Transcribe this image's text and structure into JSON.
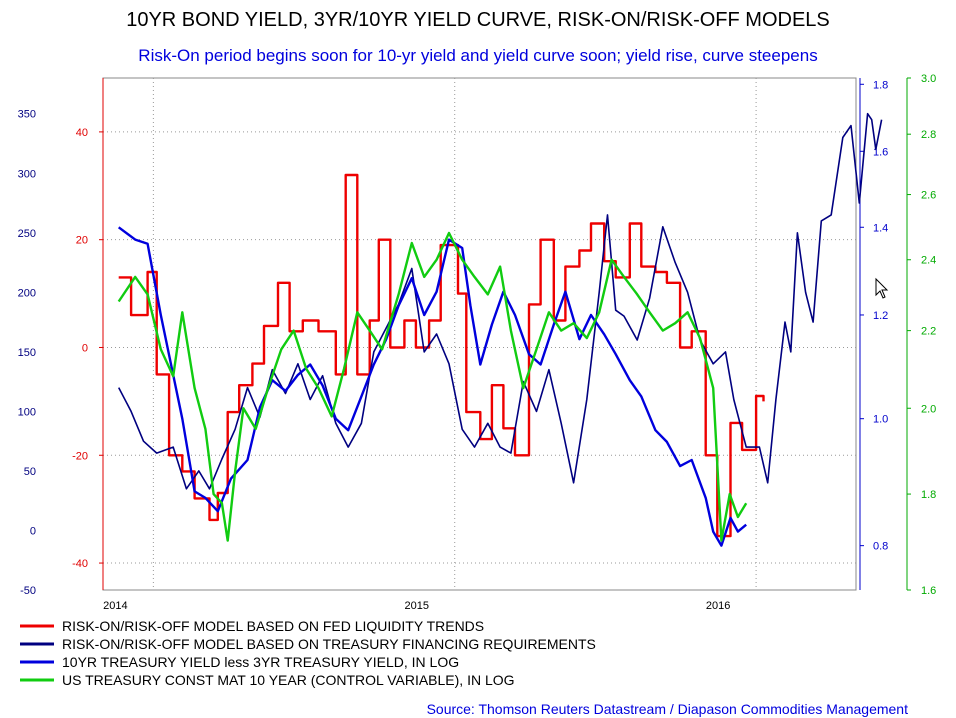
{
  "title": "10YR BOND YIELD, 3YR/10YR YIELD CURVE, RISK-ON/RISK-OFF MODELS",
  "subtitle": "Risk-On period begins soon for 10-yr yield and yield curve soon; yield rise, curve steepens",
  "source": "Source: Thomson Reuters Datastream / Diapason Commodities Management",
  "chart_data": {
    "type": "line",
    "x_range": [
      "2013-11",
      "2016-05"
    ],
    "x_ticks": [
      {
        "label": "2014",
        "date": "2014-01"
      },
      {
        "label": "2015",
        "date": "2015-01"
      },
      {
        "label": "2016",
        "date": "2016-01"
      }
    ],
    "grid": true,
    "legend": "bottom",
    "axes": [
      {
        "id": "far_left",
        "color": "#000080",
        "range": [
          -50,
          380
        ],
        "ticks": [
          "-50",
          "0",
          "50",
          "100",
          "150",
          "200",
          "250",
          "300",
          "350"
        ]
      },
      {
        "id": "left",
        "color": "#e00000",
        "range": [
          -45,
          50
        ],
        "ticks": [
          "-40",
          "-20",
          "0",
          "20",
          "40"
        ]
      },
      {
        "id": "right",
        "color": "#0000cc",
        "scale": "log",
        "range": [
          0.74,
          1.82
        ],
        "ticks": [
          "0.8",
          "1.0",
          "1.2",
          "1.4",
          "1.6",
          "1.8"
        ]
      },
      {
        "id": "far_right",
        "color": "#00aa00",
        "scale": "log",
        "range": [
          1.6,
          3.0
        ],
        "ticks": [
          "1.6",
          "1.8",
          "2.0",
          "2.2",
          "2.4",
          "2.6",
          "2.8",
          "3.0"
        ]
      }
    ],
    "series": [
      {
        "name": "RISK-ON/RISK-OFF MODEL BASED ON FED LIQUIDITY TRENDS",
        "color": "#ee0000",
        "axis": "left",
        "step": true,
        "points": [
          [
            "2013-11-20",
            13
          ],
          [
            "2013-12-05",
            6
          ],
          [
            "2013-12-25",
            14
          ],
          [
            "2014-01-05",
            -5
          ],
          [
            "2014-01-20",
            -20
          ],
          [
            "2014-02-05",
            -23
          ],
          [
            "2014-02-20",
            -28
          ],
          [
            "2014-03-10",
            -32
          ],
          [
            "2014-03-20",
            -27
          ],
          [
            "2014-04-01",
            -12
          ],
          [
            "2014-04-15",
            -7
          ],
          [
            "2014-05-01",
            -3
          ],
          [
            "2014-05-15",
            4
          ],
          [
            "2014-06-01",
            12
          ],
          [
            "2014-06-15",
            3
          ],
          [
            "2014-07-01",
            5
          ],
          [
            "2014-07-20",
            3
          ],
          [
            "2014-08-10",
            -5
          ],
          [
            "2014-08-22",
            32
          ],
          [
            "2014-09-05",
            -5
          ],
          [
            "2014-09-20",
            5
          ],
          [
            "2014-10-01",
            20
          ],
          [
            "2014-10-15",
            0
          ],
          [
            "2014-11-01",
            5
          ],
          [
            "2014-11-15",
            0
          ],
          [
            "2014-12-01",
            5
          ],
          [
            "2014-12-15",
            19
          ],
          [
            "2015-01-05",
            10
          ],
          [
            "2015-01-15",
            -12
          ],
          [
            "2015-02-01",
            -17
          ],
          [
            "2015-02-15",
            -7
          ],
          [
            "2015-03-01",
            -15
          ],
          [
            "2015-03-15",
            -20
          ],
          [
            "2015-04-01",
            8
          ],
          [
            "2015-04-15",
            20
          ],
          [
            "2015-05-01",
            5
          ],
          [
            "2015-05-15",
            15
          ],
          [
            "2015-06-01",
            18
          ],
          [
            "2015-06-15",
            23
          ],
          [
            "2015-07-01",
            16
          ],
          [
            "2015-07-15",
            13
          ],
          [
            "2015-08-01",
            23
          ],
          [
            "2015-08-15",
            15
          ],
          [
            "2015-09-01",
            14
          ],
          [
            "2015-09-15",
            12
          ],
          [
            "2015-10-01",
            0
          ],
          [
            "2015-10-15",
            3
          ],
          [
            "2015-11-01",
            -20
          ],
          [
            "2015-11-15",
            -35
          ],
          [
            "2015-12-01",
            -14
          ],
          [
            "2015-12-15",
            -19
          ],
          [
            "2016-01-01",
            -9
          ],
          [
            "2016-01-10",
            -10
          ]
        ]
      },
      {
        "name": "RISK-ON/RISK-OFF MODEL BASED ON TREASURY FINANCING REQUIREMENTS",
        "color": "#000080",
        "axis": "far_left",
        "points": [
          [
            "2013-11-20",
            120
          ],
          [
            "2013-12-05",
            100
          ],
          [
            "2013-12-20",
            75
          ],
          [
            "2014-01-05",
            65
          ],
          [
            "2014-01-25",
            70
          ],
          [
            "2014-02-10",
            35
          ],
          [
            "2014-02-25",
            50
          ],
          [
            "2014-03-10",
            35
          ],
          [
            "2014-03-25",
            60
          ],
          [
            "2014-04-10",
            85
          ],
          [
            "2014-04-25",
            120
          ],
          [
            "2014-05-10",
            95
          ],
          [
            "2014-05-25",
            135
          ],
          [
            "2014-06-10",
            115
          ],
          [
            "2014-06-25",
            140
          ],
          [
            "2014-07-10",
            110
          ],
          [
            "2014-07-25",
            130
          ],
          [
            "2014-08-10",
            90
          ],
          [
            "2014-08-25",
            70
          ],
          [
            "2014-09-10",
            90
          ],
          [
            "2014-09-25",
            150
          ],
          [
            "2014-10-10",
            170
          ],
          [
            "2014-10-25",
            190
          ],
          [
            "2014-11-10",
            220
          ],
          [
            "2014-11-25",
            150
          ],
          [
            "2014-12-10",
            165
          ],
          [
            "2014-12-25",
            140
          ],
          [
            "2015-01-10",
            85
          ],
          [
            "2015-01-25",
            70
          ],
          [
            "2015-02-10",
            90
          ],
          [
            "2015-02-25",
            70
          ],
          [
            "2015-03-10",
            65
          ],
          [
            "2015-03-25",
            125
          ],
          [
            "2015-04-10",
            100
          ],
          [
            "2015-04-25",
            135
          ],
          [
            "2015-05-10",
            90
          ],
          [
            "2015-05-25",
            40
          ],
          [
            "2015-06-10",
            110
          ],
          [
            "2015-06-25",
            200
          ],
          [
            "2015-07-05",
            265
          ],
          [
            "2015-07-15",
            185
          ],
          [
            "2015-07-25",
            180
          ],
          [
            "2015-08-10",
            160
          ],
          [
            "2015-08-25",
            195
          ],
          [
            "2015-09-10",
            255
          ],
          [
            "2015-09-25",
            225
          ],
          [
            "2015-10-10",
            200
          ],
          [
            "2015-10-25",
            160
          ],
          [
            "2015-11-10",
            140
          ],
          [
            "2015-11-25",
            150
          ],
          [
            "2015-12-05",
            110
          ],
          [
            "2015-12-20",
            70
          ],
          [
            "2016-01-05",
            70
          ],
          [
            "2016-01-15",
            40
          ],
          [
            "2016-01-25",
            110
          ],
          [
            "2016-02-05",
            175
          ],
          [
            "2016-02-12",
            150
          ],
          [
            "2016-02-20",
            250
          ],
          [
            "2016-03-01",
            200
          ],
          [
            "2016-03-10",
            175
          ],
          [
            "2016-03-20",
            260
          ],
          [
            "2016-04-01",
            265
          ],
          [
            "2016-04-15",
            330
          ],
          [
            "2016-04-25",
            340
          ],
          [
            "2016-05-05",
            275
          ],
          [
            "2016-05-15",
            350
          ],
          [
            "2016-05-20",
            345
          ],
          [
            "2016-05-25",
            320
          ],
          [
            "2016-06-01",
            345
          ]
        ]
      },
      {
        "name": "10YR TREASURY YIELD less 3YR TREASURY YIELD, IN LOG",
        "color": "#0000dd",
        "axis": "right",
        "points": [
          [
            "2013-11-20",
            1.4
          ],
          [
            "2013-12-10",
            1.37
          ],
          [
            "2013-12-25",
            1.36
          ],
          [
            "2014-01-10",
            1.2
          ],
          [
            "2014-01-25",
            1.08
          ],
          [
            "2014-02-05",
            1.0
          ],
          [
            "2014-02-20",
            0.88
          ],
          [
            "2014-03-05",
            0.87
          ],
          [
            "2014-03-20",
            0.85
          ],
          [
            "2014-04-05",
            0.9
          ],
          [
            "2014-04-25",
            0.93
          ],
          [
            "2014-05-10",
            1.02
          ],
          [
            "2014-05-25",
            1.07
          ],
          [
            "2014-06-10",
            1.05
          ],
          [
            "2014-06-25",
            1.08
          ],
          [
            "2014-07-10",
            1.1
          ],
          [
            "2014-07-25",
            1.06
          ],
          [
            "2014-08-10",
            1.0
          ],
          [
            "2014-08-25",
            0.98
          ],
          [
            "2014-09-10",
            1.04
          ],
          [
            "2014-09-25",
            1.1
          ],
          [
            "2014-10-10",
            1.15
          ],
          [
            "2014-10-25",
            1.22
          ],
          [
            "2014-11-10",
            1.28
          ],
          [
            "2014-11-25",
            1.2
          ],
          [
            "2014-12-10",
            1.25
          ],
          [
            "2014-12-25",
            1.37
          ],
          [
            "2015-01-10",
            1.35
          ],
          [
            "2015-01-20",
            1.22
          ],
          [
            "2015-02-01",
            1.1
          ],
          [
            "2015-02-15",
            1.18
          ],
          [
            "2015-03-01",
            1.25
          ],
          [
            "2015-03-15",
            1.2
          ],
          [
            "2015-04-01",
            1.12
          ],
          [
            "2015-04-15",
            1.1
          ],
          [
            "2015-05-01",
            1.18
          ],
          [
            "2015-05-15",
            1.25
          ],
          [
            "2015-06-01",
            1.15
          ],
          [
            "2015-06-15",
            1.2
          ],
          [
            "2015-07-01",
            1.16
          ],
          [
            "2015-07-15",
            1.12
          ],
          [
            "2015-08-01",
            1.07
          ],
          [
            "2015-08-15",
            1.04
          ],
          [
            "2015-09-01",
            0.98
          ],
          [
            "2015-09-15",
            0.96
          ],
          [
            "2015-10-01",
            0.92
          ],
          [
            "2015-10-15",
            0.93
          ],
          [
            "2015-11-01",
            0.87
          ],
          [
            "2015-11-10",
            0.82
          ],
          [
            "2015-11-20",
            0.8
          ],
          [
            "2015-12-01",
            0.84
          ],
          [
            "2015-12-10",
            0.82
          ],
          [
            "2015-12-20",
            0.83
          ]
        ]
      },
      {
        "name": "US TREASURY CONST MAT 10 YEAR (CONTROL VARIABLE), IN LOG",
        "color": "#11cc11",
        "axis": "far_right",
        "points": [
          [
            "2013-11-20",
            2.28
          ],
          [
            "2013-12-10",
            2.35
          ],
          [
            "2013-12-25",
            2.3
          ],
          [
            "2014-01-10",
            2.15
          ],
          [
            "2014-01-25",
            2.08
          ],
          [
            "2014-02-05",
            2.25
          ],
          [
            "2014-02-20",
            2.05
          ],
          [
            "2014-03-05",
            1.95
          ],
          [
            "2014-03-15",
            1.8
          ],
          [
            "2014-03-25",
            1.78
          ],
          [
            "2014-04-01",
            1.7
          ],
          [
            "2014-04-10",
            1.85
          ],
          [
            "2014-04-20",
            2.0
          ],
          [
            "2014-05-05",
            1.95
          ],
          [
            "2014-05-20",
            2.05
          ],
          [
            "2014-06-05",
            2.15
          ],
          [
            "2014-06-20",
            2.2
          ],
          [
            "2014-07-05",
            2.1
          ],
          [
            "2014-07-20",
            2.05
          ],
          [
            "2014-08-05",
            1.98
          ],
          [
            "2014-08-20",
            2.1
          ],
          [
            "2014-09-05",
            2.25
          ],
          [
            "2014-09-20",
            2.2
          ],
          [
            "2014-10-05",
            2.15
          ],
          [
            "2014-10-25",
            2.3
          ],
          [
            "2014-11-10",
            2.45
          ],
          [
            "2014-11-25",
            2.35
          ],
          [
            "2014-12-10",
            2.4
          ],
          [
            "2014-12-25",
            2.48
          ],
          [
            "2015-01-10",
            2.4
          ],
          [
            "2015-01-25",
            2.35
          ],
          [
            "2015-02-10",
            2.3
          ],
          [
            "2015-02-25",
            2.38
          ],
          [
            "2015-03-10",
            2.2
          ],
          [
            "2015-03-25",
            2.05
          ],
          [
            "2015-04-10",
            2.15
          ],
          [
            "2015-04-25",
            2.25
          ],
          [
            "2015-05-10",
            2.2
          ],
          [
            "2015-05-25",
            2.22
          ],
          [
            "2015-06-10",
            2.18
          ],
          [
            "2015-06-25",
            2.25
          ],
          [
            "2015-07-10",
            2.4
          ],
          [
            "2015-07-25",
            2.35
          ],
          [
            "2015-08-10",
            2.3
          ],
          [
            "2015-08-25",
            2.25
          ],
          [
            "2015-09-10",
            2.2
          ],
          [
            "2015-09-25",
            2.22
          ],
          [
            "2015-10-10",
            2.25
          ],
          [
            "2015-10-25",
            2.18
          ],
          [
            "2015-11-10",
            2.05
          ],
          [
            "2015-11-20",
            1.7
          ],
          [
            "2015-11-30",
            1.8
          ],
          [
            "2015-12-10",
            1.75
          ],
          [
            "2015-12-20",
            1.78
          ]
        ]
      }
    ]
  }
}
